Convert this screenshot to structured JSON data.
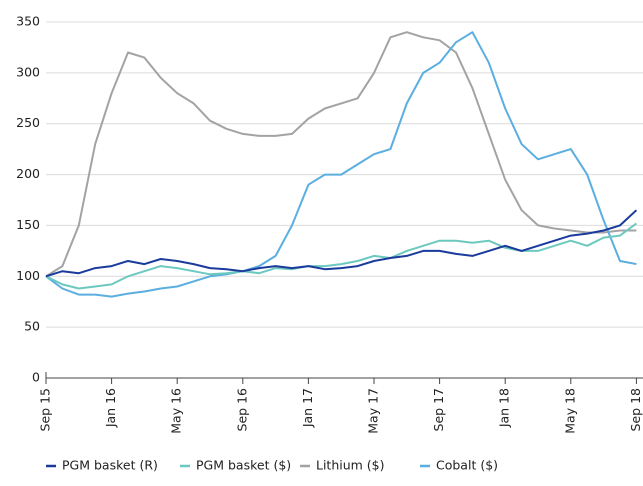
{
  "chart_data": {
    "type": "line",
    "categories": [
      "Sep 15",
      null,
      null,
      null,
      "Jan 16",
      null,
      null,
      null,
      "May 16",
      null,
      null,
      null,
      "Sep 16",
      null,
      null,
      null,
      "Jan 17",
      null,
      null,
      null,
      "May 17",
      null,
      null,
      null,
      "Sep 17",
      null,
      null,
      null,
      "Jan 18",
      null,
      null,
      null,
      "May 18",
      null,
      null,
      null,
      "Sep 18"
    ],
    "series": [
      {
        "name": "Lithium ($)",
        "color": "#a3a3a3",
        "values": [
          100,
          110,
          150,
          230,
          280,
          320,
          315,
          295,
          280,
          270,
          253,
          245,
          240,
          238,
          238,
          240,
          255,
          265,
          270,
          275,
          300,
          335,
          340,
          335,
          332,
          320,
          285,
          240,
          195,
          165,
          150,
          147,
          145,
          143,
          143,
          145,
          145
        ]
      },
      {
        "name": "Cobalt ($)",
        "color": "#5aaee0",
        "values": [
          100,
          88,
          82,
          82,
          80,
          83,
          85,
          88,
          90,
          95,
          100,
          102,
          105,
          110,
          120,
          150,
          190,
          200,
          200,
          210,
          220,
          225,
          270,
          300,
          310,
          330,
          340,
          310,
          265,
          230,
          215,
          220,
          225,
          200,
          155,
          115,
          112
        ]
      },
      {
        "name": "PGM basket ($)",
        "color": "#6cc9bf",
        "values": [
          100,
          92,
          88,
          90,
          92,
          100,
          105,
          110,
          108,
          105,
          102,
          103,
          105,
          103,
          108,
          107,
          110,
          110,
          112,
          115,
          120,
          118,
          125,
          130,
          135,
          135,
          133,
          135,
          128,
          125,
          125,
          130,
          135,
          130,
          138,
          140,
          152
        ]
      },
      {
        "name": "PGM basket (R)",
        "color": "#1a3a9c",
        "values": [
          100,
          105,
          103,
          108,
          110,
          115,
          112,
          117,
          115,
          112,
          108,
          107,
          105,
          108,
          110,
          108,
          110,
          107,
          108,
          110,
          115,
          118,
          120,
          125,
          125,
          122,
          120,
          125,
          130,
          125,
          130,
          135,
          140,
          142,
          145,
          150,
          165
        ]
      }
    ],
    "legend_order": [
      "PGM basket (R)",
      "PGM basket ($)",
      "Lithium ($)",
      "Cobalt ($)"
    ],
    "ylim": [
      0,
      350
    ],
    "yticks": [
      0,
      50,
      100,
      150,
      200,
      250,
      300,
      350
    ],
    "grid": true
  }
}
